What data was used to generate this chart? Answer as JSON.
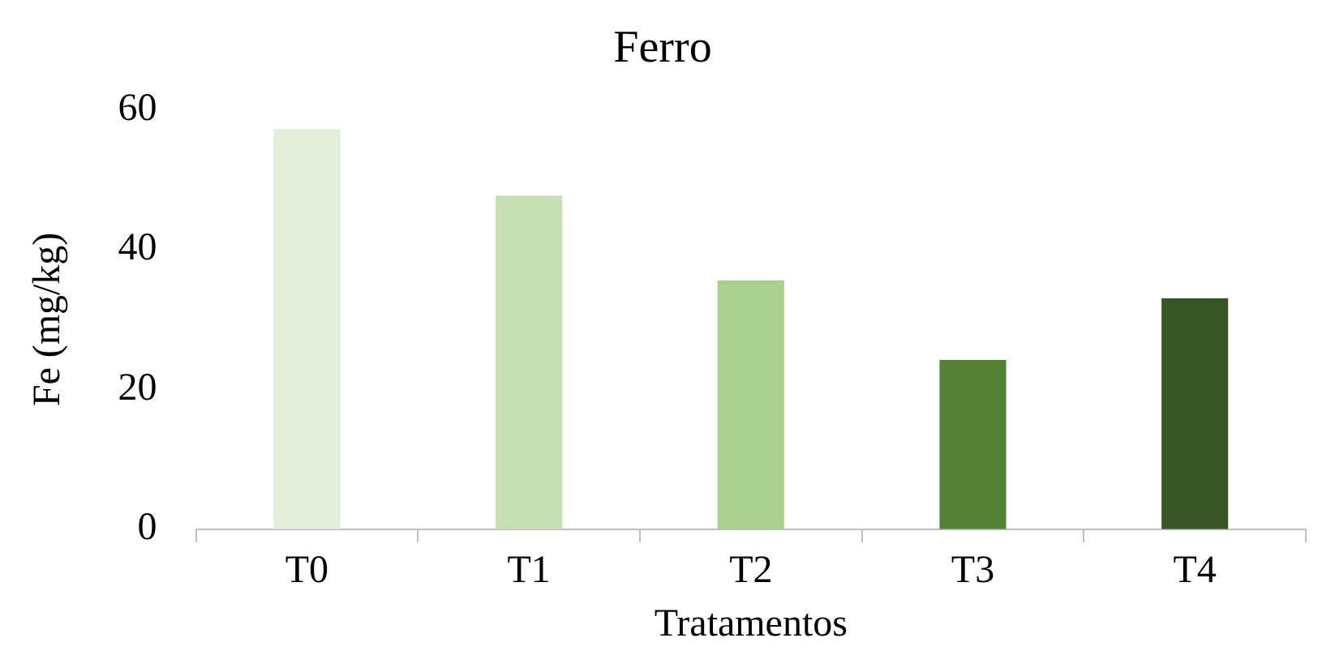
{
  "chart_data": {
    "type": "bar",
    "title": "Ferro",
    "xlabel": "Tratamentos",
    "ylabel": "Fe (mg/kg)",
    "categories": [
      "T0",
      "T1",
      "T2",
      "T3",
      "T4"
    ],
    "values": [
      57.2,
      47.7,
      35.6,
      24.2,
      33.0
    ],
    "colors": [
      "#e2efda",
      "#c6e0b4",
      "#a9d08e",
      "#548235",
      "#375623"
    ],
    "ylim": [
      0,
      60
    ],
    "yticks": [
      0,
      20,
      40,
      60
    ],
    "grid": false,
    "legend": false
  }
}
